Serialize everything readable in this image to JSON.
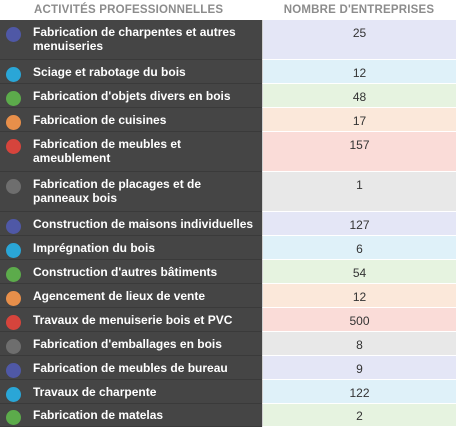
{
  "header": {
    "activity": "ACTIVITÉS PROFESSIONNELLES",
    "count": "NOMBRE D'ENTREPRISES"
  },
  "rows": [
    {
      "label": "Fabrication de charpentes et autres menuiseries",
      "value": "25",
      "dot": "#4f58a6",
      "bg": "#e4e6f6"
    },
    {
      "label": "Sciage et rabotage du bois",
      "value": "12",
      "dot": "#2aa6d7",
      "bg": "#dff1f9"
    },
    {
      "label": "Fabrication d'objets divers en bois",
      "value": "48",
      "dot": "#5cab4b",
      "bg": "#e6f3e0"
    },
    {
      "label": "Fabrication de cuisines",
      "value": "17",
      "dot": "#e88f4a",
      "bg": "#fbe8da"
    },
    {
      "label": "Fabrication de meubles et ameublement",
      "value": "157",
      "dot": "#d6443c",
      "bg": "#fadcd8"
    },
    {
      "label": "Fabrication de placages et de panneaux bois",
      "value": "1",
      "dot": "#6e6e6e",
      "bg": "#e8e8e8"
    },
    {
      "label": "Construction de maisons individuelles",
      "value": "127",
      "dot": "#4f58a6",
      "bg": "#e4e6f6"
    },
    {
      "label": "Imprégnation du bois",
      "value": "6",
      "dot": "#2aa6d7",
      "bg": "#dff1f9"
    },
    {
      "label": "Construction d'autres bâtiments",
      "value": "54",
      "dot": "#5cab4b",
      "bg": "#e6f3e0"
    },
    {
      "label": "Agencement de lieux de vente",
      "value": "12",
      "dot": "#e88f4a",
      "bg": "#fbe8da"
    },
    {
      "label": "Travaux de menuiserie bois et PVC",
      "value": "500",
      "dot": "#d6443c",
      "bg": "#fadcd8"
    },
    {
      "label": "Fabrication d'emballages en bois",
      "value": "8",
      "dot": "#6e6e6e",
      "bg": "#e8e8e8"
    },
    {
      "label": "Fabrication de meubles de bureau",
      "value": "9",
      "dot": "#4f58a6",
      "bg": "#e4e6f6"
    },
    {
      "label": "Travaux de charpente",
      "value": "122",
      "dot": "#2aa6d7",
      "bg": "#dff1f9"
    },
    {
      "label": "Fabrication de matelas",
      "value": "2",
      "dot": "#5cab4b",
      "bg": "#e6f3e0"
    }
  ]
}
